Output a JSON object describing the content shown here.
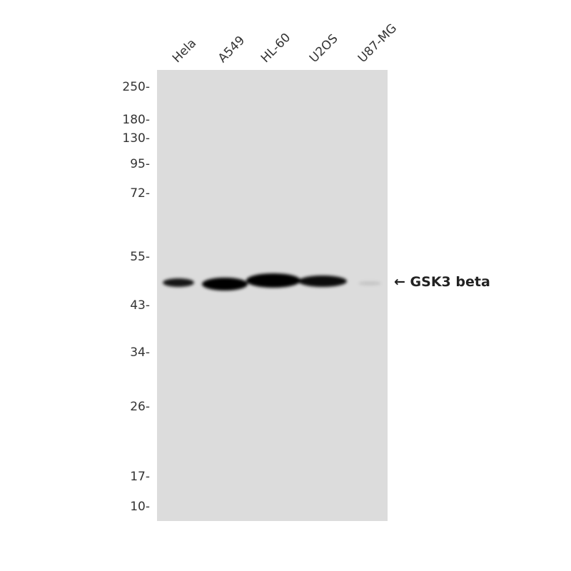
{
  "lanes": [
    "Hela",
    "A549",
    "HL-60",
    "U2OS",
    "U87-MG"
  ],
  "markers": [
    "250-",
    "180-",
    "130-",
    "95-",
    "72-",
    "55-",
    "43-",
    "34-",
    "26-",
    "17-",
    "10-"
  ],
  "target": {
    "arrow": "←",
    "label": "GSK3 beta"
  },
  "band_intensity": [
    0.9,
    1.0,
    1.0,
    0.95,
    0.1
  ],
  "colors": {
    "membrane": "#dcdcdc",
    "band": "#050505"
  }
}
